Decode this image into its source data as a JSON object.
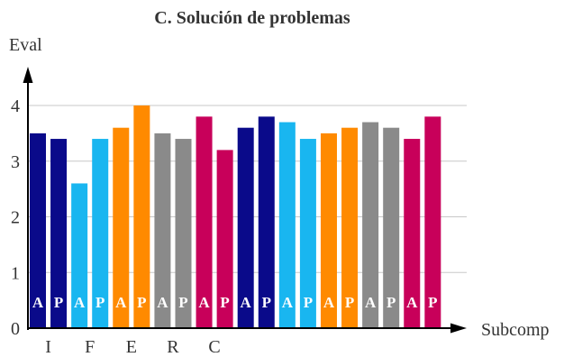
{
  "chart_data": {
    "type": "bar",
    "title": "C. Solución de problemas",
    "xlabel": "Subcomp",
    "ylabel": "Eval",
    "ylim": [
      0,
      4
    ],
    "yticks": [
      0,
      1,
      2,
      3,
      4
    ],
    "grid": true,
    "category_labels": [
      "I",
      "F",
      "E",
      "R",
      "C"
    ],
    "bars": [
      {
        "label": "A",
        "value": 3.5,
        "color": "#0a0a8a"
      },
      {
        "label": "P",
        "value": 3.4,
        "color": "#0a0a8a"
      },
      {
        "label": "A",
        "value": 2.6,
        "color": "#19b6f0"
      },
      {
        "label": "P",
        "value": 3.4,
        "color": "#19b6f0"
      },
      {
        "label": "A",
        "value": 3.6,
        "color": "#ff8a00"
      },
      {
        "label": "P",
        "value": 4.0,
        "color": "#ff8a00"
      },
      {
        "label": "A",
        "value": 3.5,
        "color": "#8a8a8a"
      },
      {
        "label": "P",
        "value": 3.4,
        "color": "#8a8a8a"
      },
      {
        "label": "A",
        "value": 3.8,
        "color": "#c8005a"
      },
      {
        "label": "P",
        "value": 3.2,
        "color": "#c8005a"
      },
      {
        "label": "A",
        "value": 3.6,
        "color": "#0a0a8a"
      },
      {
        "label": "P",
        "value": 3.8,
        "color": "#0a0a8a"
      },
      {
        "label": "A",
        "value": 3.7,
        "color": "#19b6f0"
      },
      {
        "label": "P",
        "value": 3.4,
        "color": "#19b6f0"
      },
      {
        "label": "A",
        "value": 3.5,
        "color": "#ff8a00"
      },
      {
        "label": "P",
        "value": 3.6,
        "color": "#ff8a00"
      },
      {
        "label": "A",
        "value": 3.7,
        "color": "#8a8a8a"
      },
      {
        "label": "P",
        "value": 3.6,
        "color": "#8a8a8a"
      },
      {
        "label": "A",
        "value": 3.4,
        "color": "#c8005a"
      },
      {
        "label": "P",
        "value": 3.8,
        "color": "#c8005a"
      }
    ],
    "colors": {
      "grid": "#c8c8c8",
      "axis": "#000000",
      "text": "#333333",
      "bar_label": "#ffffff"
    }
  }
}
